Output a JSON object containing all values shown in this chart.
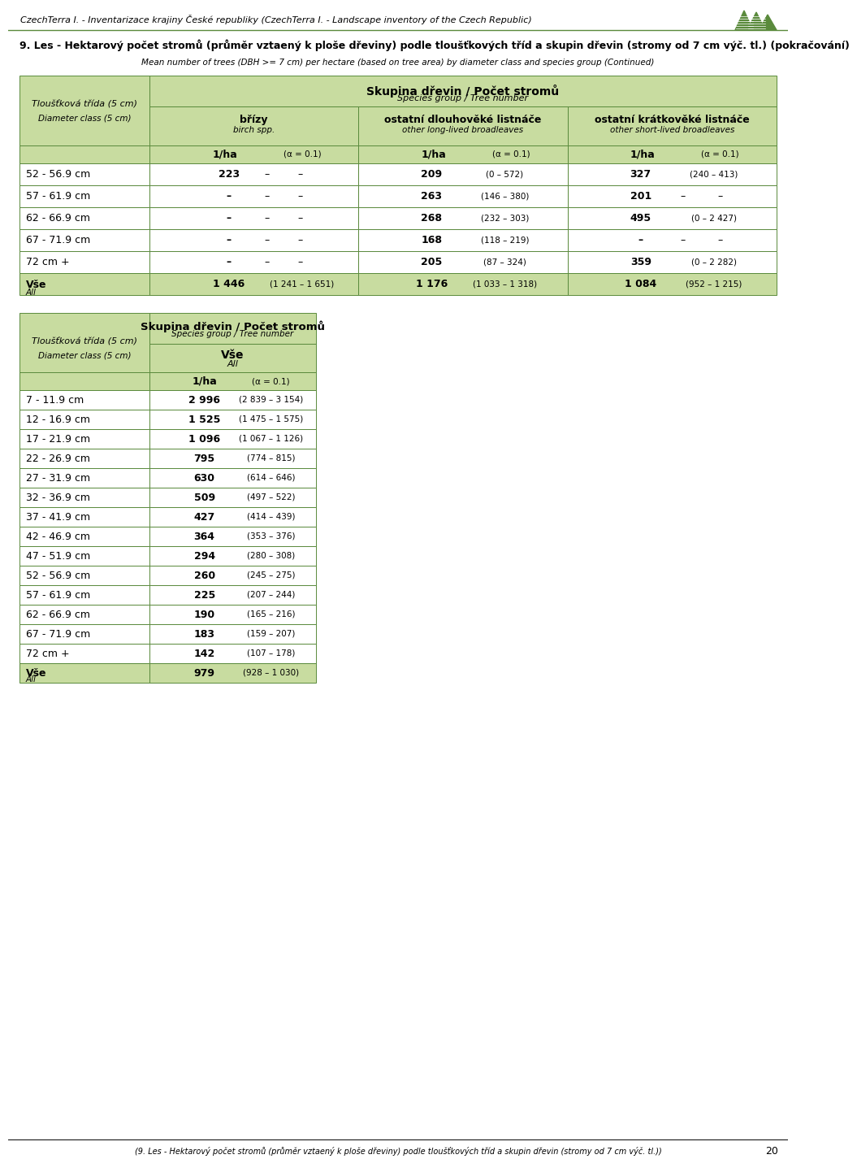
{
  "header_title": "CzechTerra I. - Inventarizace krajiny České republiky (CzechTerra I. - Landscape inventory of the Czech Republic)",
  "page_title": "9. Les - Hektarový počet stromů (průměr vztaený k ploše dřeviny) podle tloušťkových tříd a skupin dřevin (stromy od 7 cm výč. tl.) (pokračování)",
  "subtitle": "Mean number of trees (DBH >= 7 cm) per hectare (based on tree area) by diameter class and species group (Continued)",
  "footer": "(9. Les - Hektarový počet stromů (průměr vztaený k ploše dřeviny) podle tloušťkových tříd a skupin dřevin (stromy od 7 cm výč. tl.))",
  "page_number": "20",
  "header_green": "#5a8a3c",
  "light_green": "#c8dca0",
  "mid_green": "#8db555",
  "white": "#ffffff",
  "border_color": "#5a8a3c",
  "table1": {
    "rows": [
      {
        "class": "52 - 56.9 cm",
        "birch_val": "223",
        "birch_d1": "–",
        "birch_d2": "–",
        "long_val": "209",
        "long_ci": "(0 – 572)",
        "short_val": "327",
        "short_ci": "(240 – 413)"
      },
      {
        "class": "57 - 61.9 cm",
        "birch_val": "–",
        "birch_d1": "–",
        "birch_d2": "–",
        "long_val": "263",
        "long_ci": "(146 – 380)",
        "short_val": "201",
        "short_ci": "–",
        "short_d": "–"
      },
      {
        "class": "62 - 66.9 cm",
        "birch_val": "–",
        "birch_d1": "–",
        "birch_d2": "–",
        "long_val": "268",
        "long_ci": "(232 – 303)",
        "short_val": "495",
        "short_ci": "(0 – 2 427)"
      },
      {
        "class": "67 - 71.9 cm",
        "birch_val": "–",
        "birch_d1": "–",
        "birch_d2": "–",
        "long_val": "168",
        "long_ci": "(118 – 219)",
        "short_val": "–",
        "short_ci": "–",
        "short_d": "–"
      },
      {
        "class": "72 cm +",
        "birch_val": "–",
        "birch_d1": "–",
        "birch_d2": "–",
        "long_val": "205",
        "long_ci": "(87 – 324)",
        "short_val": "359",
        "short_ci": "(0 – 2 282)"
      },
      {
        "class": "Vše",
        "class2": "All",
        "birch_val": "1 446",
        "birch_ci": "(1 241 – 1 651)",
        "long_val": "1 176",
        "long_ci": "(1 033 – 1 318)",
        "short_val": "1 084",
        "short_ci": "(952 – 1 215)",
        "is_total": true
      }
    ]
  },
  "table2": {
    "rows": [
      {
        "class": "7 - 11.9 cm",
        "val": "2 996",
        "ci": "(2 839 – 3 154)"
      },
      {
        "class": "12 - 16.9 cm",
        "val": "1 525",
        "ci": "(1 475 – 1 575)"
      },
      {
        "class": "17 - 21.9 cm",
        "val": "1 096",
        "ci": "(1 067 – 1 126)"
      },
      {
        "class": "22 - 26.9 cm",
        "val": "795",
        "ci": "(774 – 815)"
      },
      {
        "class": "27 - 31.9 cm",
        "val": "630",
        "ci": "(614 – 646)"
      },
      {
        "class": "32 - 36.9 cm",
        "val": "509",
        "ci": "(497 – 522)"
      },
      {
        "class": "37 - 41.9 cm",
        "val": "427",
        "ci": "(414 – 439)"
      },
      {
        "class": "42 - 46.9 cm",
        "val": "364",
        "ci": "(353 – 376)"
      },
      {
        "class": "47 - 51.9 cm",
        "val": "294",
        "ci": "(280 – 308)"
      },
      {
        "class": "52 - 56.9 cm",
        "val": "260",
        "ci": "(245 – 275)"
      },
      {
        "class": "57 - 61.9 cm",
        "val": "225",
        "ci": "(207 – 244)"
      },
      {
        "class": "62 - 66.9 cm",
        "val": "190",
        "ci": "(165 – 216)"
      },
      {
        "class": "67 - 71.9 cm",
        "val": "183",
        "ci": "(159 – 207)"
      },
      {
        "class": "72 cm +",
        "val": "142",
        "ci": "(107 – 178)"
      },
      {
        "class": "Vše",
        "class2": "All",
        "val": "979",
        "ci": "(928 – 1 030)",
        "is_total": true
      }
    ]
  }
}
